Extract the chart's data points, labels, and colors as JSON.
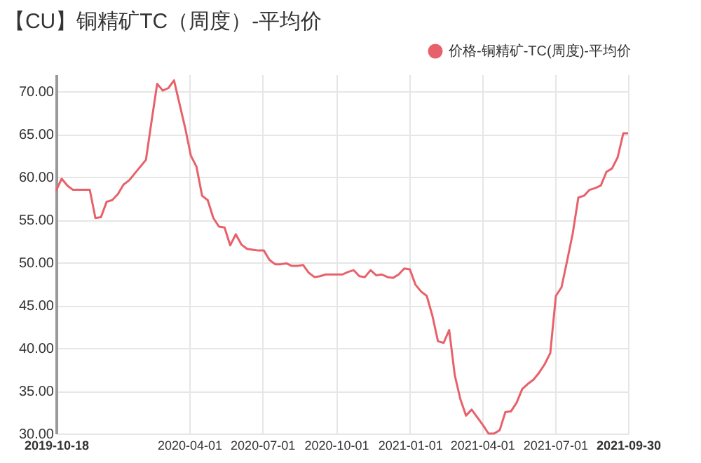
{
  "chart_data": {
    "type": "line",
    "title": "【CU】铜精矿TC（周度）-平均价",
    "x": [
      "2019-10-18",
      "2019-10-25",
      "2019-11-01",
      "2019-11-08",
      "2019-11-15",
      "2019-11-22",
      "2019-11-29",
      "2019-12-06",
      "2019-12-13",
      "2019-12-20",
      "2019-12-27",
      "2020-01-03",
      "2020-01-10",
      "2020-01-17",
      "2020-01-24",
      "2020-01-31",
      "2020-02-07",
      "2020-02-14",
      "2020-02-21",
      "2020-02-28",
      "2020-03-06",
      "2020-03-13",
      "2020-03-20",
      "2020-03-27",
      "2020-04-03",
      "2020-04-10",
      "2020-04-17",
      "2020-04-24",
      "2020-05-01",
      "2020-05-08",
      "2020-05-15",
      "2020-05-22",
      "2020-05-29",
      "2020-06-05",
      "2020-06-12",
      "2020-06-19",
      "2020-06-26",
      "2020-07-03",
      "2020-07-10",
      "2020-07-17",
      "2020-07-24",
      "2020-07-31",
      "2020-08-07",
      "2020-08-14",
      "2020-08-21",
      "2020-08-28",
      "2020-09-04",
      "2020-09-11",
      "2020-09-18",
      "2020-09-25",
      "2020-10-02",
      "2020-10-09",
      "2020-10-16",
      "2020-10-23",
      "2020-10-30",
      "2020-11-06",
      "2020-11-13",
      "2020-11-20",
      "2020-11-27",
      "2020-12-04",
      "2020-12-11",
      "2020-12-18",
      "2020-12-25",
      "2021-01-01",
      "2021-01-08",
      "2021-01-15",
      "2021-01-22",
      "2021-01-29",
      "2021-02-05",
      "2021-02-12",
      "2021-02-19",
      "2021-02-26",
      "2021-03-05",
      "2021-03-12",
      "2021-03-19",
      "2021-03-26",
      "2021-04-02",
      "2021-04-09",
      "2021-04-16",
      "2021-04-23",
      "2021-04-30",
      "2021-05-07",
      "2021-05-14",
      "2021-05-21",
      "2021-05-28",
      "2021-06-04",
      "2021-06-11",
      "2021-06-18",
      "2021-06-25",
      "2021-07-02",
      "2021-07-09",
      "2021-07-16",
      "2021-07-23",
      "2021-07-30",
      "2021-08-06",
      "2021-08-13",
      "2021-08-20",
      "2021-08-27",
      "2021-09-03",
      "2021-09-10",
      "2021-09-17",
      "2021-09-24",
      "2021-09-30"
    ],
    "series": [
      {
        "name": "价格-铜精矿-TC(周度)-平均价",
        "color": "#e8616a",
        "values": [
          58.4,
          59.8,
          59.0,
          58.5,
          58.5,
          58.5,
          58.5,
          55.2,
          55.3,
          57.1,
          57.3,
          58.0,
          59.1,
          59.6,
          60.4,
          61.2,
          62.0,
          66.5,
          70.9,
          70.1,
          70.4,
          71.3,
          68.5,
          65.7,
          62.5,
          61.2,
          57.8,
          57.3,
          55.2,
          54.2,
          54.1,
          52.0,
          53.3,
          52.1,
          51.6,
          51.5,
          51.4,
          51.4,
          50.3,
          49.8,
          49.8,
          49.9,
          49.6,
          49.6,
          49.7,
          48.8,
          48.3,
          48.4,
          48.6,
          48.6,
          48.6,
          48.6,
          48.9,
          49.1,
          48.4,
          48.3,
          49.1,
          48.5,
          48.6,
          48.3,
          48.2,
          48.6,
          49.3,
          49.2,
          47.4,
          46.6,
          46.1,
          43.8,
          40.8,
          40.6,
          42.1,
          36.8,
          34.0,
          32.1,
          32.8,
          31.9,
          31.0,
          30.0,
          30.0,
          30.4,
          32.5,
          32.6,
          33.6,
          35.2,
          35.8,
          36.3,
          37.1,
          38.1,
          39.4,
          46.1,
          47.1,
          50.2,
          53.4,
          57.6,
          57.8,
          58.5,
          58.7,
          59.0,
          60.6,
          61.0,
          62.3,
          65.1,
          65.1
        ]
      }
    ],
    "xlim": [
      "2019-10-18",
      "2021-09-30"
    ],
    "xticks": [
      "2019-10-18",
      "2020-04-01",
      "2020-07-01",
      "2020-10-01",
      "2021-01-01",
      "2021-04-01",
      "2021-07-01",
      "2021-09-30"
    ],
    "ylim": [
      30,
      72
    ],
    "yticks": [
      {
        "value": 30,
        "label": "30.00"
      },
      {
        "value": 35,
        "label": "35.00"
      },
      {
        "value": 40,
        "label": "40.00"
      },
      {
        "value": 45,
        "label": "45.00"
      },
      {
        "value": 50,
        "label": "50.00"
      },
      {
        "value": 55,
        "label": "55.00"
      },
      {
        "value": 60,
        "label": "60.00"
      },
      {
        "value": 65,
        "label": "65.00"
      },
      {
        "value": 70,
        "label": "70.00"
      }
    ],
    "grid": true,
    "legend": "top right",
    "marker": "none",
    "line_style": "solid"
  }
}
